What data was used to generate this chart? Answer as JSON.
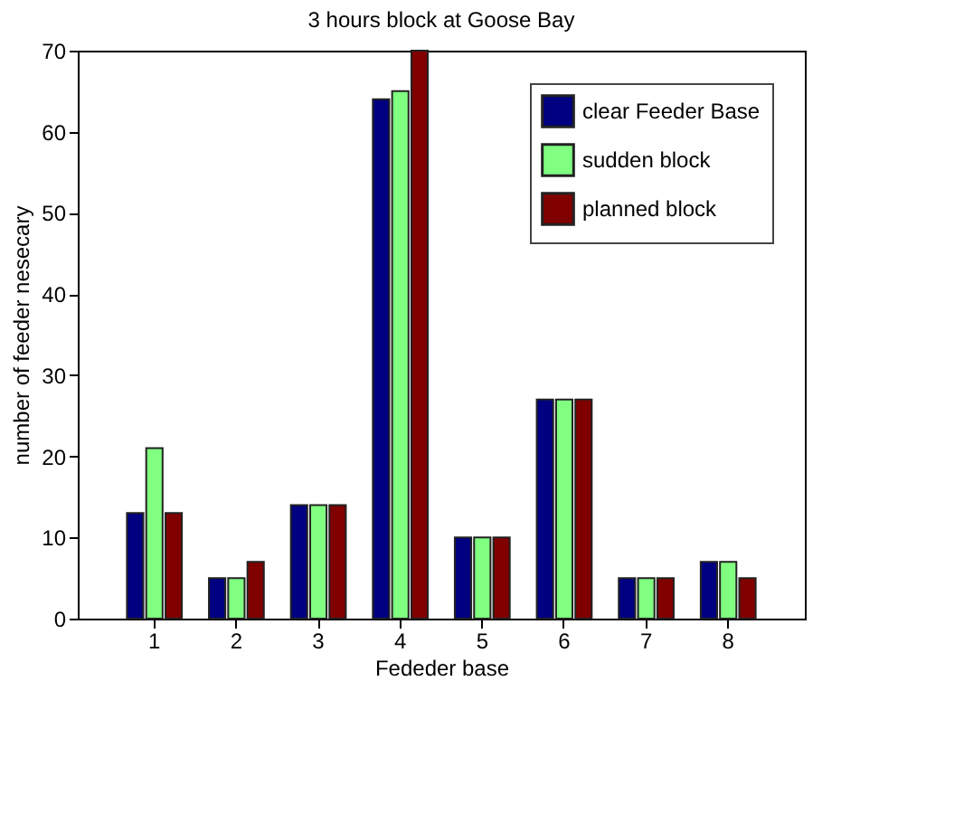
{
  "chart_data": {
    "type": "bar",
    "title": "3 hours block at Goose Bay",
    "xlabel": "Fededer base",
    "ylabel": "number of feeder nesecary",
    "categories": [
      "1",
      "2",
      "3",
      "4",
      "5",
      "6",
      "7",
      "8"
    ],
    "series": [
      {
        "name": "clear Feeder Base",
        "color": "#000080",
        "values": [
          13,
          5,
          14,
          64,
          10,
          27,
          5,
          7
        ]
      },
      {
        "name": "sudden block",
        "color": "#80ff80",
        "values": [
          21,
          5,
          14,
          65,
          10,
          27,
          5,
          7
        ]
      },
      {
        "name": "planned block",
        "color": "#800000",
        "values": [
          13,
          7,
          14,
          70,
          10,
          27,
          5,
          5
        ]
      }
    ],
    "ylim": [
      0,
      70
    ],
    "yticks": [
      0,
      10,
      20,
      30,
      40,
      50,
      60,
      70
    ],
    "grid": false,
    "legend": "top right"
  }
}
